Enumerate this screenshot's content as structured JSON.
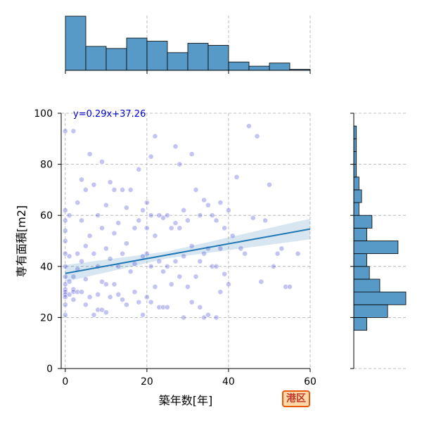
{
  "chart_data": {
    "type": "scatter",
    "title": "",
    "xlabel": "築年数[年]",
    "ylabel": "専有面積[m2]",
    "xlim": [
      -1,
      60
    ],
    "ylim": [
      0,
      100
    ],
    "x_ticks": [
      0,
      20,
      40,
      60
    ],
    "y_ticks": [
      0,
      20,
      40,
      60,
      80,
      100
    ],
    "grid": "dashed",
    "regression": {
      "label": "y=0.29x+37.26",
      "slope": 0.29,
      "intercept": 37.26,
      "x_range": [
        0,
        60
      ],
      "ci": 3.0
    },
    "badge": "港区",
    "colors": {
      "points": "#2b2bd1",
      "regression": "#1f77b4",
      "hist": "#5799c7",
      "equation": "#0000cc"
    },
    "scatter": {
      "x": [
        0,
        0,
        0,
        0,
        0,
        0,
        0,
        0,
        0,
        0,
        0,
        0,
        0,
        0,
        0,
        1,
        1,
        1,
        1,
        2,
        2,
        2,
        2,
        2,
        3,
        3,
        3,
        3,
        4,
        4,
        4,
        4,
        5,
        5,
        5,
        5,
        6,
        6,
        6,
        7,
        7,
        7,
        8,
        8,
        8,
        8,
        9,
        9,
        9,
        9,
        10,
        10,
        10,
        10,
        11,
        11,
        11,
        12,
        12,
        12,
        13,
        13,
        13,
        14,
        14,
        14,
        15,
        15,
        15,
        16,
        16,
        17,
        17,
        17,
        18,
        18,
        18,
        19,
        19,
        19,
        20,
        20,
        20,
        20,
        21,
        21,
        21,
        21,
        22,
        22,
        22,
        23,
        23,
        23,
        24,
        24,
        24,
        25,
        25,
        25,
        26,
        26,
        27,
        27,
        27,
        28,
        28,
        28,
        29,
        29,
        29,
        30,
        30,
        31,
        31,
        31,
        32,
        32,
        33,
        33,
        33,
        34,
        34,
        34,
        35,
        35,
        35,
        36,
        36,
        37,
        37,
        37,
        38,
        38,
        38,
        39,
        39,
        40,
        40,
        41,
        42,
        43,
        44,
        45,
        46,
        47,
        48,
        49,
        50,
        51,
        52,
        53,
        54,
        55,
        57
      ],
      "y": [
        93,
        62,
        58,
        54,
        50,
        45,
        40,
        36,
        33,
        31,
        30,
        29,
        28,
        25,
        21,
        60,
        44,
        34,
        29,
        93,
        36,
        31,
        30,
        27,
        65,
        45,
        39,
        30,
        74,
        58,
        42,
        30,
        70,
        48,
        35,
        25,
        84,
        52,
        28,
        72,
        45,
        21,
        60,
        40,
        29,
        23,
        81,
        55,
        34,
        23,
        64,
        47,
        33,
        22,
        73,
        43,
        28,
        70,
        53,
        33,
        57,
        40,
        29,
        70,
        45,
        27,
        63,
        49,
        25,
        70,
        38,
        55,
        41,
        30,
        78,
        58,
        26,
        62,
        44,
        21,
        65,
        55,
        45,
        28,
        83,
        60,
        40,
        26,
        91,
        52,
        32,
        60,
        42,
        24,
        59,
        38,
        24,
        60,
        40,
        24,
        55,
        33,
        87,
        57,
        42,
        80,
        55,
        36,
        62,
        44,
        20,
        58,
        32,
        84,
        48,
        26,
        70,
        36,
        60,
        42,
        24,
        66,
        45,
        20,
        64,
        47,
        21,
        60,
        40,
        58,
        40,
        20,
        65,
        47,
        30,
        55,
        37,
        62,
        33,
        52,
        75,
        47,
        45,
        95,
        59,
        91,
        34,
        58,
        72,
        40,
        45,
        47,
        32,
        32,
        45
      ]
    },
    "hist_x": {
      "bins": [
        0,
        5,
        10,
        15,
        20,
        25,
        30,
        35,
        40,
        45,
        50,
        55,
        60
      ],
      "counts": [
        52,
        23,
        21,
        31,
        28,
        17,
        26,
        24,
        8,
        4,
        7,
        1
      ]
    },
    "hist_y": {
      "bins": [
        15,
        20,
        25,
        30,
        35,
        40,
        45,
        50,
        55,
        60,
        65,
        70,
        75,
        80,
        85,
        90,
        95,
        100
      ],
      "counts": [
        5,
        13,
        20,
        10,
        6,
        5,
        17,
        5,
        7,
        2,
        3,
        2,
        1,
        1,
        1,
        1,
        0
      ]
    }
  }
}
